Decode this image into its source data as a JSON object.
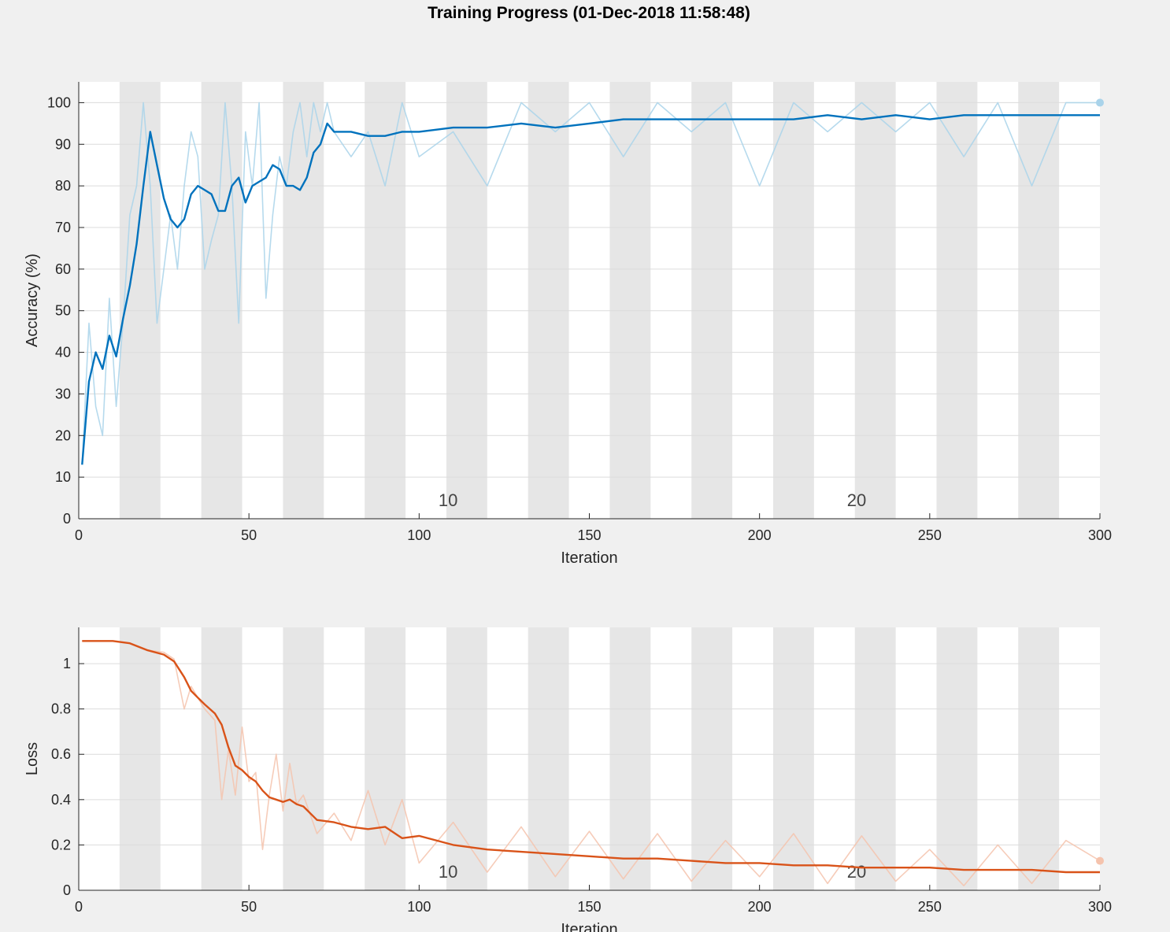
{
  "figure": {
    "title": "Training Progress (01-Dec-2018 11:58:48)"
  },
  "colors": {
    "background": "#f0f0f0",
    "axes_bg": "#ffffff",
    "epoch_band": "#e6e6e6",
    "grid": "#dcdcdc",
    "accuracy_smoothed": "#0072bd",
    "accuracy_raw": "#a9d3ea",
    "loss_smoothed": "#d95319",
    "loss_raw": "#f5c3ad"
  },
  "chart_data": [
    {
      "type": "line",
      "title": "",
      "xlabel": "Iteration",
      "ylabel": "Accuracy (%)",
      "xlim": [
        0,
        300
      ],
      "ylim": [
        0,
        105
      ],
      "xticks": [
        "0",
        "50",
        "100",
        "150",
        "200",
        "250",
        "300"
      ],
      "yticks": [
        "0",
        "10",
        "20",
        "30",
        "40",
        "50",
        "60",
        "70",
        "80",
        "90",
        "100"
      ],
      "grid": true,
      "iterations_per_epoch": 12,
      "epoch_labels": [
        {
          "text": "10",
          "x": 108
        },
        {
          "text": "20",
          "x": 228
        }
      ],
      "series": [
        {
          "role": "raw",
          "x": [
            1,
            3,
            5,
            7,
            9,
            11,
            13,
            15,
            17,
            19,
            21,
            23,
            25,
            27,
            29,
            31,
            33,
            35,
            37,
            39,
            41,
            43,
            45,
            47,
            49,
            51,
            53,
            55,
            57,
            59,
            61,
            63,
            65,
            67,
            69,
            71,
            73,
            75,
            80,
            85,
            90,
            95,
            100,
            110,
            120,
            130,
            140,
            150,
            160,
            170,
            180,
            190,
            200,
            210,
            220,
            230,
            240,
            250,
            260,
            270,
            280,
            290,
            300
          ],
          "values": [
            13,
            47,
            27,
            20,
            53,
            27,
            47,
            73,
            80,
            100,
            80,
            47,
            60,
            73,
            60,
            80,
            93,
            87,
            60,
            67,
            73,
            100,
            80,
            47,
            93,
            80,
            100,
            53,
            73,
            87,
            80,
            93,
            100,
            87,
            100,
            93,
            100,
            93,
            87,
            93,
            80,
            100,
            87,
            93,
            80,
            100,
            93,
            100,
            87,
            100,
            93,
            100,
            80,
            100,
            93,
            100,
            93,
            100,
            87,
            100,
            80,
            100,
            100
          ]
        },
        {
          "role": "smoothed",
          "x": [
            1,
            3,
            5,
            7,
            9,
            11,
            13,
            15,
            17,
            19,
            21,
            23,
            25,
            27,
            29,
            31,
            33,
            35,
            37,
            39,
            41,
            43,
            45,
            47,
            49,
            51,
            53,
            55,
            57,
            59,
            61,
            63,
            65,
            67,
            69,
            71,
            73,
            75,
            80,
            85,
            90,
            95,
            100,
            110,
            120,
            130,
            140,
            150,
            160,
            170,
            180,
            190,
            200,
            210,
            220,
            230,
            240,
            250,
            260,
            270,
            280,
            290,
            300
          ],
          "values": [
            13,
            33,
            40,
            36,
            44,
            39,
            48,
            56,
            66,
            80,
            93,
            85,
            77,
            72,
            70,
            72,
            78,
            80,
            79,
            78,
            74,
            74,
            80,
            82,
            76,
            80,
            81,
            82,
            85,
            84,
            80,
            80,
            79,
            82,
            88,
            90,
            95,
            93,
            93,
            92,
            92,
            93,
            93,
            94,
            94,
            95,
            94,
            95,
            96,
            96,
            96,
            96,
            96,
            96,
            97,
            96,
            97,
            96,
            97,
            97,
            97,
            97,
            97
          ]
        }
      ]
    },
    {
      "type": "line",
      "title": "",
      "xlabel": "Iteration",
      "ylabel": "Loss",
      "xlim": [
        0,
        300
      ],
      "ylim": [
        0,
        1.16
      ],
      "xticks": [
        "0",
        "50",
        "100",
        "150",
        "200",
        "250",
        "300"
      ],
      "yticks": [
        "0",
        "0.2",
        "0.4",
        "0.6",
        "0.8",
        "1"
      ],
      "grid": true,
      "iterations_per_epoch": 12,
      "epoch_labels": [
        {
          "text": "10",
          "x": 108
        },
        {
          "text": "20",
          "x": 228
        }
      ],
      "series": [
        {
          "role": "raw",
          "x": [
            1,
            5,
            10,
            15,
            20,
            25,
            28,
            31,
            33,
            35,
            37,
            40,
            42,
            44,
            46,
            48,
            50,
            52,
            54,
            56,
            58,
            60,
            62,
            64,
            66,
            70,
            75,
            80,
            85,
            90,
            95,
            100,
            110,
            120,
            130,
            140,
            150,
            160,
            170,
            180,
            190,
            200,
            210,
            220,
            230,
            240,
            250,
            260,
            270,
            280,
            290,
            300
          ],
          "values": [
            1.1,
            1.1,
            1.1,
            1.09,
            1.06,
            1.05,
            1.02,
            0.8,
            0.9,
            0.85,
            0.8,
            0.75,
            0.4,
            0.62,
            0.42,
            0.72,
            0.48,
            0.52,
            0.18,
            0.42,
            0.6,
            0.35,
            0.56,
            0.38,
            0.42,
            0.25,
            0.34,
            0.22,
            0.44,
            0.2,
            0.4,
            0.12,
            0.3,
            0.08,
            0.28,
            0.06,
            0.26,
            0.05,
            0.25,
            0.04,
            0.22,
            0.06,
            0.25,
            0.03,
            0.24,
            0.04,
            0.18,
            0.02,
            0.2,
            0.03,
            0.22,
            0.13
          ]
        },
        {
          "role": "smoothed",
          "x": [
            1,
            5,
            10,
            15,
            20,
            25,
            28,
            31,
            33,
            35,
            37,
            40,
            42,
            44,
            46,
            48,
            50,
            52,
            54,
            56,
            58,
            60,
            62,
            64,
            66,
            70,
            75,
            80,
            85,
            90,
            95,
            100,
            110,
            120,
            130,
            140,
            150,
            160,
            170,
            180,
            190,
            200,
            210,
            220,
            230,
            240,
            250,
            260,
            270,
            280,
            290,
            300
          ],
          "values": [
            1.1,
            1.1,
            1.1,
            1.09,
            1.06,
            1.04,
            1.01,
            0.94,
            0.88,
            0.85,
            0.82,
            0.78,
            0.73,
            0.63,
            0.55,
            0.53,
            0.5,
            0.48,
            0.44,
            0.41,
            0.4,
            0.39,
            0.4,
            0.38,
            0.37,
            0.31,
            0.3,
            0.28,
            0.27,
            0.28,
            0.23,
            0.24,
            0.2,
            0.18,
            0.17,
            0.16,
            0.15,
            0.14,
            0.14,
            0.13,
            0.12,
            0.12,
            0.11,
            0.11,
            0.1,
            0.1,
            0.1,
            0.09,
            0.09,
            0.09,
            0.08,
            0.08
          ]
        }
      ]
    }
  ]
}
